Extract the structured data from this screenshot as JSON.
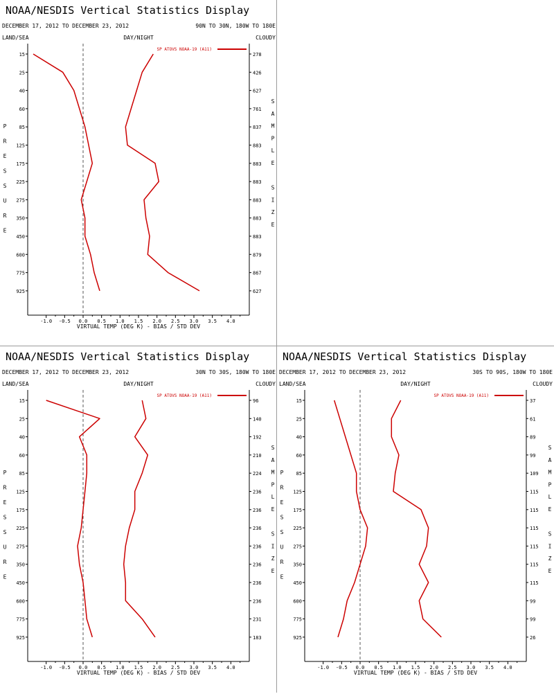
{
  "chart_data": [
    {
      "type": "line",
      "title": "NOAA/NESDIS Vertical Statistics Display",
      "date_range": "DECEMBER 17, 2012 TO DECEMBER 23, 2012",
      "region": "90N TO 30N, 180W TO 180E",
      "land_sea": "LAND/SEA",
      "day_night": "DAY/NIGHT",
      "cloudy": "CLOUDY",
      "ylabel": "PRESSURE",
      "y2label": "SAMPLE SIZE",
      "xlabel": "VIRTUAL TEMP (DEG K) - BIAS / STD DEV",
      "legend": "SP ATOVS NOAA-19 (A11)",
      "xlim": [
        -1.5,
        4.5
      ],
      "x_ticks": [
        "-1.0",
        "-0.5",
        "0.0",
        "0.5",
        "1.0",
        "1.5",
        "2.0",
        "2.5",
        "3.0",
        "3.5",
        "4.0"
      ],
      "pressure_levels": [
        "15",
        "25",
        "40",
        "60",
        "85",
        "125",
        "175",
        "225",
        "275",
        "350",
        "450",
        "600",
        "775",
        "925"
      ],
      "sample_size": [
        "278",
        "426",
        "627",
        "761",
        "837",
        "883",
        "883",
        "883",
        "883",
        "883",
        "883",
        "879",
        "867",
        "627"
      ],
      "series": [
        {
          "values": [
            -1.35,
            -0.55,
            -0.25,
            -0.1,
            0.05,
            0.15,
            0.25,
            0.1,
            -0.05,
            0.05,
            0.05,
            0.2,
            0.3,
            0.45
          ]
        },
        {
          "values": [
            1.9,
            1.6,
            1.45,
            1.3,
            1.15,
            1.2,
            1.95,
            2.05,
            1.65,
            1.7,
            1.8,
            1.75,
            2.3,
            3.15
          ]
        }
      ]
    },
    {
      "type": "line",
      "title": "NOAA/NESDIS Vertical Statistics Display",
      "date_range": "DECEMBER 17, 2012 TO DECEMBER 23, 2012",
      "region": "30N TO 30S, 180W TO 180E",
      "land_sea": "LAND/SEA",
      "day_night": "DAY/NIGHT",
      "cloudy": "CLOUDY",
      "ylabel": "PRESSURE",
      "y2label": "SAMPLE SIZE",
      "xlabel": "VIRTUAL TEMP (DEG K) - BIAS / STD DEV",
      "legend": "SP ATOVS NOAA-19 (A11)",
      "xlim": [
        -1.5,
        4.5
      ],
      "x_ticks": [
        "-1.0",
        "-0.5",
        "0.0",
        "0.5",
        "1.0",
        "1.5",
        "2.0",
        "2.5",
        "3.0",
        "3.5",
        "4.0"
      ],
      "pressure_levels": [
        "15",
        "25",
        "40",
        "60",
        "85",
        "125",
        "175",
        "225",
        "275",
        "350",
        "450",
        "600",
        "775",
        "925"
      ],
      "sample_size": [
        "96",
        "140",
        "192",
        "210",
        "224",
        "236",
        "236",
        "236",
        "236",
        "236",
        "236",
        "236",
        "231",
        "183"
      ],
      "series": [
        {
          "values": [
            -1.0,
            0.45,
            -0.1,
            0.1,
            0.1,
            0.05,
            0.0,
            -0.05,
            -0.15,
            -0.1,
            0.0,
            0.05,
            0.1,
            0.25
          ]
        },
        {
          "values": [
            1.6,
            1.7,
            1.4,
            1.75,
            1.6,
            1.4,
            1.4,
            1.25,
            1.15,
            1.1,
            1.15,
            1.15,
            1.6,
            1.95
          ]
        }
      ]
    },
    {
      "type": "line",
      "title": "NOAA/NESDIS Vertical Statistics Display",
      "date_range": "DECEMBER 17, 2012 TO DECEMBER 23, 2012",
      "region": "30S TO 90S, 180W TO 180E",
      "land_sea": "LAND/SEA",
      "day_night": "DAY/NIGHT",
      "cloudy": "CLOUDY",
      "ylabel": "PRESSURE",
      "y2label": "SAMPLE SIZE",
      "xlabel": "VIRTUAL TEMP (DEG K) - BIAS / STD DEV",
      "legend": "SP ATOVS NOAA-19 (A11)",
      "xlim": [
        -1.5,
        4.5
      ],
      "x_ticks": [
        "-1.0",
        "-0.5",
        "0.0",
        "0.5",
        "1.0",
        "1.5",
        "2.0",
        "2.5",
        "3.0",
        "3.5",
        "4.0"
      ],
      "pressure_levels": [
        "15",
        "25",
        "40",
        "60",
        "85",
        "125",
        "175",
        "225",
        "275",
        "350",
        "450",
        "600",
        "775",
        "925"
      ],
      "sample_size": [
        "37",
        "61",
        "89",
        "99",
        "109",
        "115",
        "115",
        "115",
        "115",
        "115",
        "115",
        "99",
        "99",
        "26"
      ],
      "series": [
        {
          "values": [
            -0.7,
            -0.55,
            -0.4,
            -0.25,
            -0.1,
            -0.1,
            0.0,
            0.2,
            0.15,
            0.0,
            -0.15,
            -0.35,
            -0.45,
            -0.6
          ]
        },
        {
          "values": [
            1.1,
            0.85,
            0.85,
            1.05,
            0.95,
            0.9,
            1.65,
            1.85,
            1.8,
            1.6,
            1.85,
            1.6,
            1.7,
            2.2
          ]
        }
      ]
    }
  ],
  "colors": {
    "series": "#cc0000",
    "axis": "#000000",
    "zero_line": "#555555",
    "divider": "#9a9a9a"
  }
}
